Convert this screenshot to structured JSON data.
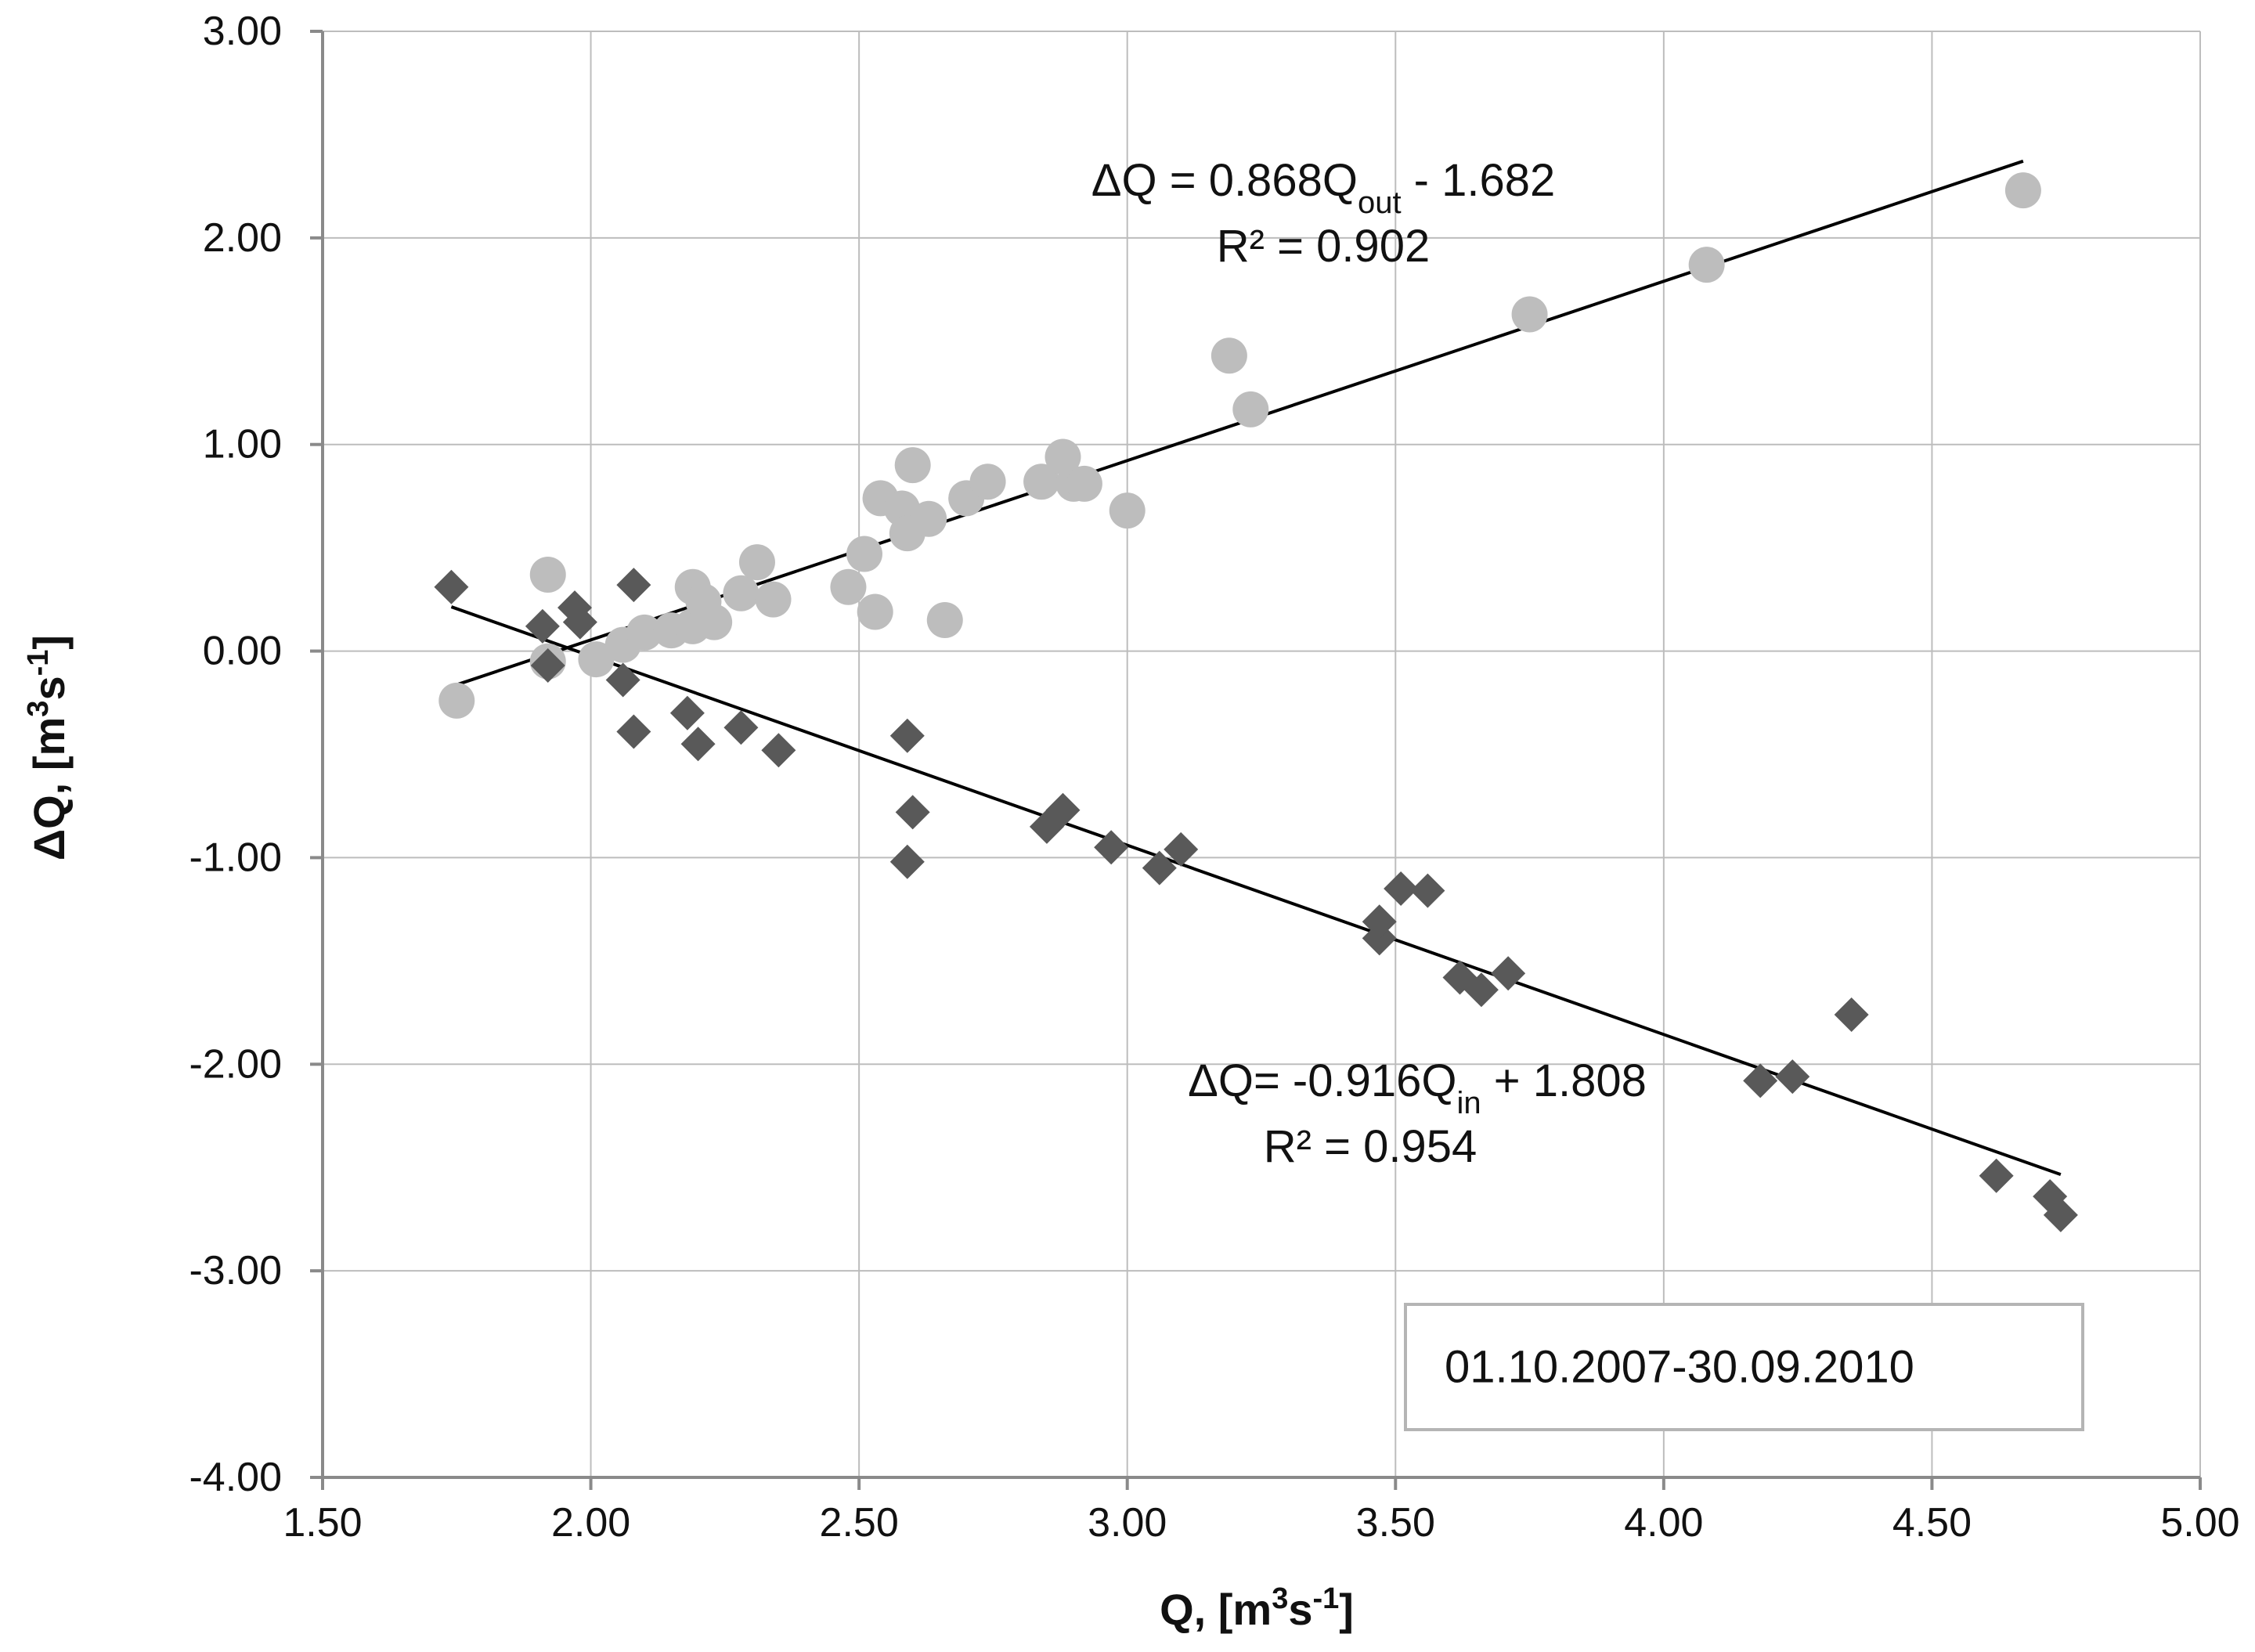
{
  "chart_data": {
    "type": "scatter",
    "title": "",
    "xlabel": "Q, [m³s⁻¹]",
    "ylabel": "ΔQ, [m³s⁻¹]",
    "xlim": [
      1.5,
      5.0
    ],
    "ylim": [
      -4.0,
      3.0
    ],
    "x_ticks": [
      1.5,
      2.0,
      2.5,
      3.0,
      3.5,
      4.0,
      4.5,
      5.0
    ],
    "x_tick_labels": [
      "1.50",
      "2.00",
      "2.50",
      "3.00",
      "3.50",
      "4.00",
      "4.50",
      "5.00"
    ],
    "y_ticks": [
      3.0,
      2.0,
      1.0,
      0.0,
      -1.0,
      -2.0,
      -3.0,
      -4.0
    ],
    "y_tick_labels": [
      "3.00",
      "2.00",
      "1.00",
      "0.00",
      "-1.00",
      "-2.00",
      "-3.00",
      "-4.00"
    ],
    "grid": true,
    "legend": "none",
    "date_range_label": "01.10.2007-30.09.2010",
    "colors": {
      "outflow": "#bdbdbd",
      "inflow": "#595959",
      "trend": "#000000",
      "grid": "#bdbdbd",
      "axis": "#8a8a8a"
    },
    "series": [
      {
        "name": "Q_out",
        "marker": "circle",
        "color": "#bdbdbd",
        "points": [
          [
            1.75,
            -0.24
          ],
          [
            1.92,
            0.37
          ],
          [
            1.92,
            -0.05
          ],
          [
            2.01,
            -0.04
          ],
          [
            2.06,
            0.03
          ],
          [
            2.1,
            0.09
          ],
          [
            2.15,
            0.1
          ],
          [
            2.19,
            0.12
          ],
          [
            2.19,
            0.31
          ],
          [
            2.21,
            0.24
          ],
          [
            2.23,
            0.14
          ],
          [
            2.28,
            0.28
          ],
          [
            2.31,
            0.43
          ],
          [
            2.34,
            0.25
          ],
          [
            2.48,
            0.31
          ],
          [
            2.51,
            0.47
          ],
          [
            2.53,
            0.19
          ],
          [
            2.54,
            0.74
          ],
          [
            2.58,
            0.69
          ],
          [
            2.59,
            0.57
          ],
          [
            2.6,
            0.9
          ],
          [
            2.63,
            0.64
          ],
          [
            2.66,
            0.15
          ],
          [
            2.7,
            0.74
          ],
          [
            2.74,
            0.82
          ],
          [
            2.84,
            0.82
          ],
          [
            2.88,
            0.94
          ],
          [
            2.9,
            0.81
          ],
          [
            2.92,
            0.81
          ],
          [
            3.0,
            0.68
          ],
          [
            3.19,
            1.43
          ],
          [
            3.23,
            1.17
          ],
          [
            3.75,
            1.63
          ],
          [
            4.08,
            1.87
          ],
          [
            4.67,
            2.23
          ]
        ]
      },
      {
        "name": "Q_in",
        "marker": "diamond",
        "color": "#595959",
        "points": [
          [
            1.74,
            0.31
          ],
          [
            1.91,
            0.12
          ],
          [
            1.92,
            -0.07
          ],
          [
            1.97,
            0.21
          ],
          [
            1.98,
            0.14
          ],
          [
            2.06,
            -0.14
          ],
          [
            2.08,
            0.32
          ],
          [
            2.08,
            -0.39
          ],
          [
            2.18,
            -0.3
          ],
          [
            2.2,
            -0.45
          ],
          [
            2.28,
            -0.37
          ],
          [
            2.35,
            -0.48
          ],
          [
            2.59,
            -0.41
          ],
          [
            2.59,
            -1.02
          ],
          [
            2.6,
            -0.78
          ],
          [
            2.85,
            -0.85
          ],
          [
            2.88,
            -0.77
          ],
          [
            2.97,
            -0.95
          ],
          [
            3.06,
            -1.05
          ],
          [
            3.1,
            -0.96
          ],
          [
            3.47,
            -1.39
          ],
          [
            3.47,
            -1.31
          ],
          [
            3.51,
            -1.15
          ],
          [
            3.56,
            -1.16
          ],
          [
            3.62,
            -1.58
          ],
          [
            3.66,
            -1.64
          ],
          [
            3.71,
            -1.56
          ],
          [
            4.18,
            -2.08
          ],
          [
            4.24,
            -2.06
          ],
          [
            4.35,
            -1.76
          ],
          [
            4.62,
            -2.54
          ],
          [
            4.72,
            -2.64
          ],
          [
            4.74,
            -2.73
          ]
        ]
      }
    ],
    "trendlines": [
      {
        "name": "Q_out fit",
        "slope": 0.868,
        "intercept": -1.682,
        "x_range": [
          1.75,
          4.67
        ],
        "equation_prefix": "ΔQ = 0.868Q",
        "equation_sub": "out",
        "equation_suffix": " - 1.682",
        "r2_label": "R² = 0.902"
      },
      {
        "name": "Q_in fit",
        "slope": -0.916,
        "intercept": 1.808,
        "x_range": [
          1.74,
          4.74
        ],
        "equation_prefix": "ΔQ= -0.916Q",
        "equation_sub": "in",
        "equation_suffix": " + 1.808",
        "r2_label": "R² = 0.954"
      }
    ]
  }
}
